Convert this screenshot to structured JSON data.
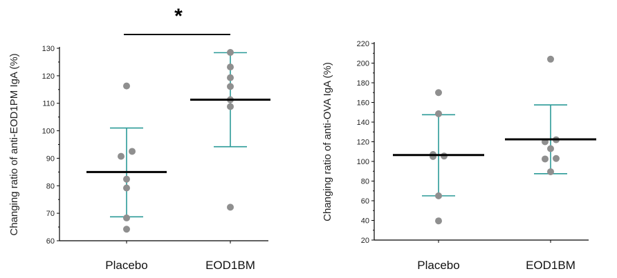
{
  "colors": {
    "point": "#8f8f8f",
    "error_bar": "#2a9a97",
    "mean_line": "#000000",
    "axis": "#000000"
  },
  "chart_data": [
    {
      "type": "scatter",
      "title": "",
      "ylabel": "Changing ratio of anti-EOD1PM IgA (%)",
      "xlabel": "",
      "ylim": [
        60,
        130
      ],
      "yticks": [
        "60",
        "70",
        "80",
        "90",
        "100",
        "110",
        "120",
        "130"
      ],
      "categories": [
        "Placebo",
        "EOD1BM"
      ],
      "groups": [
        {
          "category": "Placebo",
          "mean": 85,
          "upper": 101,
          "lower": 68.7,
          "points": [
            116.3,
            92.5,
            90.7,
            82.4,
            79.2,
            68.3,
            64.2
          ]
        },
        {
          "category": "EOD1BM",
          "mean": 111.3,
          "upper": 128.4,
          "lower": 94.2,
          "points": [
            128.5,
            123.2,
            119.3,
            116.1,
            111.3,
            108.8,
            72.2
          ]
        }
      ],
      "significance": {
        "label": "*",
        "between": [
          "Placebo",
          "EOD1BM"
        ]
      }
    },
    {
      "type": "scatter",
      "title": "",
      "ylabel": "Changing ratio of anti-OVA IgA (%)",
      "xlabel": "",
      "ylim": [
        20,
        220
      ],
      "yticks": [
        "20",
        "40",
        "60",
        "80",
        "100",
        "120",
        "140",
        "160",
        "180",
        "200",
        "220"
      ],
      "categories": [
        "Placebo",
        "EOD1BM"
      ],
      "groups": [
        {
          "category": "Placebo",
          "mean": 106.5,
          "upper": 147.5,
          "lower": 65,
          "points": [
            170,
            148.5,
            107,
            105,
            105.5,
            65,
            39.5
          ]
        },
        {
          "category": "EOD1BM",
          "mean": 122.5,
          "upper": 157.5,
          "lower": 87.5,
          "points": [
            204,
            122,
            120,
            113,
            103,
            102.5,
            89.5
          ]
        }
      ]
    }
  ]
}
